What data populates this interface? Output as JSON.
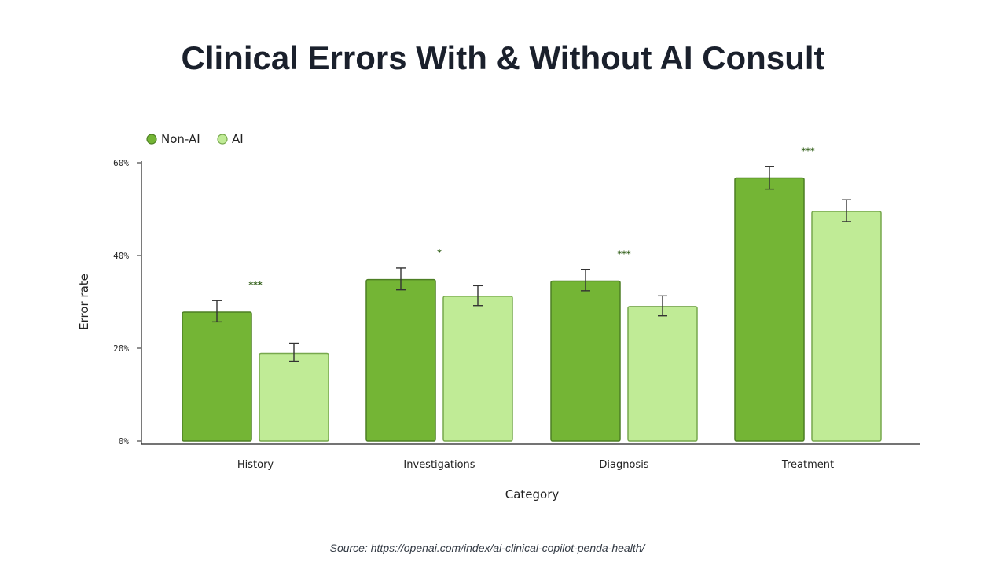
{
  "page": {
    "title": "Clinical Errors With & Without AI Consult",
    "source": "Source: https://openai.com/index/ai-clinical-copilot-penda-health/"
  },
  "chart_data": {
    "type": "bar",
    "xlabel": "Category",
    "ylabel": "Error rate",
    "ylim": [
      0,
      60
    ],
    "yticks": [
      "0%",
      "20%",
      "40%",
      "60%"
    ],
    "categories": [
      "History",
      "Investigations",
      "Diagnosis",
      "Treatment"
    ],
    "series": [
      {
        "name": "Non-AI",
        "color": "#74b535",
        "values": [
          27.8,
          34.8,
          34.5,
          56.7
        ],
        "error_low": [
          25.7,
          32.6,
          32.4,
          54.3
        ],
        "error_high": [
          30.3,
          37.3,
          37.0,
          59.2
        ]
      },
      {
        "name": "AI",
        "color": "#c0eb96",
        "values": [
          18.9,
          31.2,
          29.0,
          49.5
        ],
        "error_low": [
          17.2,
          29.2,
          27.0,
          47.3
        ],
        "error_high": [
          21.1,
          33.5,
          31.3,
          52.0
        ]
      }
    ],
    "significance": [
      "***",
      "*",
      "***",
      "***"
    ],
    "legend_position": "top-left",
    "grid": false
  }
}
